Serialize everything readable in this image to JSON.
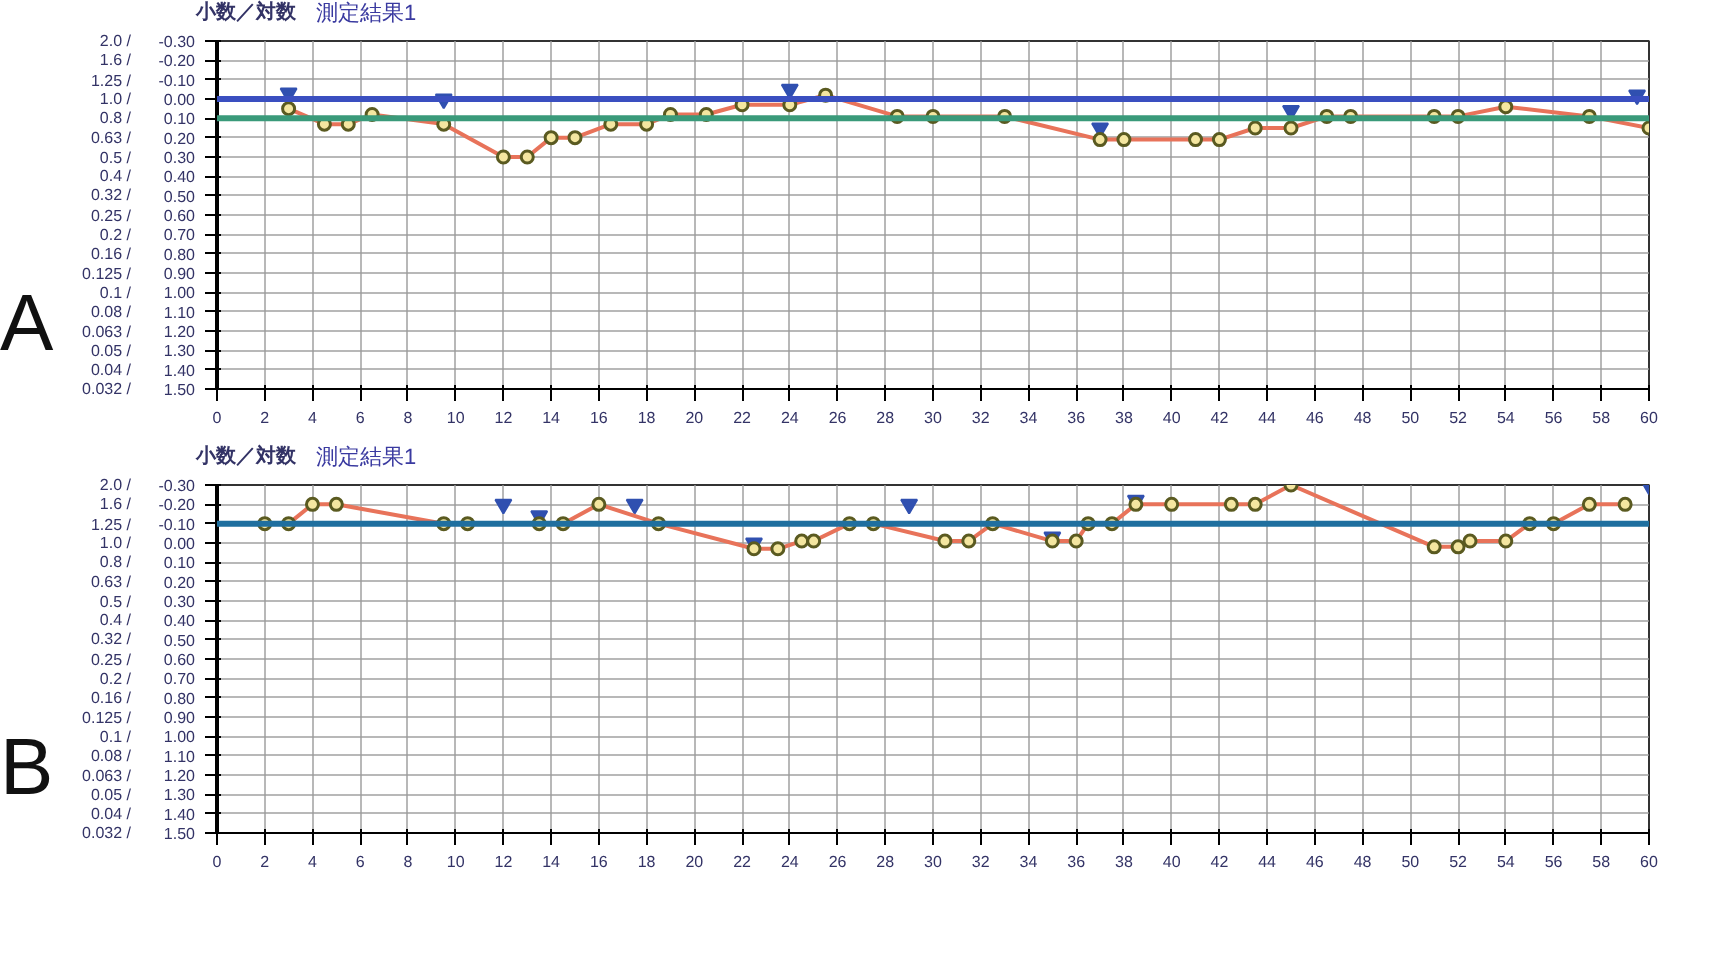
{
  "chart_data": [
    {
      "type": "line",
      "title": "測定結果1",
      "ylabel": "小数／対数",
      "annotations": [
        "A"
      ],
      "xlim": [
        0,
        60
      ],
      "xticks": [
        0,
        2,
        4,
        6,
        8,
        10,
        12,
        14,
        16,
        18,
        20,
        22,
        24,
        26,
        28,
        30,
        32,
        34,
        36,
        38,
        40,
        42,
        44,
        46,
        48,
        50,
        52,
        54,
        56,
        58,
        60
      ],
      "ylim": [
        1.5,
        -0.3
      ],
      "yticks": [
        {
          "value": -0.3,
          "label": "-0.30"
        },
        {
          "value": -0.2,
          "label": "-0.20"
        },
        {
          "value": -0.1,
          "label": "-0.10"
        },
        {
          "value": 0.0,
          "label": "0.00"
        },
        {
          "value": 0.1,
          "label": "0.10"
        },
        {
          "value": 0.2,
          "label": "0.20"
        },
        {
          "value": 0.3,
          "label": "0.30"
        },
        {
          "value": 0.4,
          "label": "0.40"
        },
        {
          "value": 0.5,
          "label": "0.50"
        },
        {
          "value": 0.6,
          "label": "0.60"
        },
        {
          "value": 0.7,
          "label": "0.70"
        },
        {
          "value": 0.8,
          "label": "0.80"
        },
        {
          "value": 0.9,
          "label": "0.90"
        },
        {
          "value": 1.0,
          "label": "1.00"
        },
        {
          "value": 1.1,
          "label": "1.10"
        },
        {
          "value": 1.2,
          "label": "1.20"
        },
        {
          "value": 1.3,
          "label": "1.30"
        },
        {
          "value": 1.4,
          "label": "1.40"
        },
        {
          "value": 1.5,
          "label": "1.50"
        }
      ],
      "log": "y2",
      "y2lim": [
        0.032,
        2.0
      ],
      "y2ticks": [
        {
          "value": 2.0,
          "label": "2.0 /"
        },
        {
          "value": 1.6,
          "label": "1.6 /"
        },
        {
          "value": 1.25,
          "label": "1.25 /"
        },
        {
          "value": 1.0,
          "label": "1.0 /"
        },
        {
          "value": 0.8,
          "label": "0.8 /"
        },
        {
          "value": 0.63,
          "label": "0.63 /"
        },
        {
          "value": 0.5,
          "label": "0.5 /"
        },
        {
          "value": 0.4,
          "label": "0.4 /"
        },
        {
          "value": 0.32,
          "label": "0.32 /"
        },
        {
          "value": 0.25,
          "label": "0.25 /"
        },
        {
          "value": 0.2,
          "label": "0.2 /"
        },
        {
          "value": 0.16,
          "label": "0.16 /"
        },
        {
          "value": 0.125,
          "label": "0.125 /"
        },
        {
          "value": 0.1,
          "label": "0.1 /"
        },
        {
          "value": 0.08,
          "label": "0.08 /"
        },
        {
          "value": 0.063,
          "label": "0.063 /"
        },
        {
          "value": 0.05,
          "label": "0.05 /"
        },
        {
          "value": 0.04,
          "label": "0.04 /"
        },
        {
          "value": 0.032,
          "label": "0.032 /"
        }
      ],
      "grid": true,
      "marker": "circle",
      "ref_lines": [
        {
          "axis": "y",
          "value": 0.0,
          "color": "#3a4fc0"
        },
        {
          "axis": "y",
          "value": 0.1,
          "color": "#3a9a7a"
        }
      ],
      "series": [
        {
          "color": "#e8735a",
          "x": [
            3,
            4.5,
            5.5,
            6.5,
            9.5,
            12,
            13,
            14,
            15,
            16.5,
            18,
            19,
            20.5,
            22,
            24,
            25.5,
            28.5,
            30,
            33,
            37,
            38,
            41,
            42,
            43.5,
            45,
            46.5,
            47.5,
            51,
            52,
            54,
            57.5,
            60
          ],
          "values": [
            0.05,
            0.13,
            0.13,
            0.08,
            0.13,
            0.3,
            0.3,
            0.2,
            0.2,
            0.13,
            0.13,
            0.08,
            0.08,
            0.03,
            0.03,
            -0.02,
            0.09,
            0.09,
            0.09,
            0.21,
            0.21,
            0.21,
            0.21,
            0.15,
            0.15,
            0.09,
            0.09,
            0.09,
            0.09,
            0.04,
            0.09,
            0.15
          ]
        },
        {
          "type": "scatter",
          "marker": "triangle",
          "color": "#3050b0",
          "x": [
            3,
            9.5,
            24,
            37,
            45,
            59.5
          ],
          "values": [
            -0.03,
            0.0,
            -0.05,
            0.15,
            0.06,
            -0.02
          ]
        }
      ]
    },
    {
      "type": "line",
      "title": "測定結果1",
      "ylabel": "小数／対数",
      "annotations": [
        "B"
      ],
      "xlim": [
        0,
        60
      ],
      "xticks": [
        0,
        2,
        4,
        6,
        8,
        10,
        12,
        14,
        16,
        18,
        20,
        22,
        24,
        26,
        28,
        30,
        32,
        34,
        36,
        38,
        40,
        42,
        44,
        46,
        48,
        50,
        52,
        54,
        56,
        58,
        60
      ],
      "ylim": [
        1.5,
        -0.3
      ],
      "yticks": [
        {
          "value": -0.3,
          "label": "-0.30"
        },
        {
          "value": -0.2,
          "label": "-0.20"
        },
        {
          "value": -0.1,
          "label": "-0.10"
        },
        {
          "value": 0.0,
          "label": "0.00"
        },
        {
          "value": 0.1,
          "label": "0.10"
        },
        {
          "value": 0.2,
          "label": "0.20"
        },
        {
          "value": 0.3,
          "label": "0.30"
        },
        {
          "value": 0.4,
          "label": "0.40"
        },
        {
          "value": 0.5,
          "label": "0.50"
        },
        {
          "value": 0.6,
          "label": "0.60"
        },
        {
          "value": 0.7,
          "label": "0.70"
        },
        {
          "value": 0.8,
          "label": "0.80"
        },
        {
          "value": 0.9,
          "label": "0.90"
        },
        {
          "value": 1.0,
          "label": "1.00"
        },
        {
          "value": 1.1,
          "label": "1.10"
        },
        {
          "value": 1.2,
          "label": "1.20"
        },
        {
          "value": 1.3,
          "label": "1.30"
        },
        {
          "value": 1.4,
          "label": "1.40"
        },
        {
          "value": 1.5,
          "label": "1.50"
        }
      ],
      "log": "y2",
      "y2lim": [
        0.032,
        2.0
      ],
      "y2ticks": [
        {
          "value": 2.0,
          "label": "2.0 /"
        },
        {
          "value": 1.6,
          "label": "1.6 /"
        },
        {
          "value": 1.25,
          "label": "1.25 /"
        },
        {
          "value": 1.0,
          "label": "1.0 /"
        },
        {
          "value": 0.8,
          "label": "0.8 /"
        },
        {
          "value": 0.63,
          "label": "0.63 /"
        },
        {
          "value": 0.5,
          "label": "0.5 /"
        },
        {
          "value": 0.4,
          "label": "0.4 /"
        },
        {
          "value": 0.32,
          "label": "0.32 /"
        },
        {
          "value": 0.25,
          "label": "0.25 /"
        },
        {
          "value": 0.2,
          "label": "0.2 /"
        },
        {
          "value": 0.16,
          "label": "0.16 /"
        },
        {
          "value": 0.125,
          "label": "0.125 /"
        },
        {
          "value": 0.1,
          "label": "0.1 /"
        },
        {
          "value": 0.08,
          "label": "0.08 /"
        },
        {
          "value": 0.063,
          "label": "0.063 /"
        },
        {
          "value": 0.05,
          "label": "0.05 /"
        },
        {
          "value": 0.04,
          "label": "0.04 /"
        },
        {
          "value": 0.032,
          "label": "0.032 /"
        }
      ],
      "grid": true,
      "marker": "circle",
      "ref_lines": [
        {
          "axis": "y",
          "value": -0.1,
          "color": "#1f6f9f"
        }
      ],
      "series": [
        {
          "color": "#e8735a",
          "x": [
            2,
            3,
            4,
            5,
            9.5,
            10.5,
            13.5,
            14.5,
            16,
            18.5,
            22.5,
            23.5,
            24.5,
            25,
            26.5,
            27.5,
            30.5,
            31.5,
            32.5,
            35,
            36,
            36.5,
            37.5,
            38.5,
            40,
            42.5,
            43.5,
            45,
            51,
            52,
            52.5,
            54,
            55,
            56,
            57.5,
            59
          ],
          "values": [
            -0.1,
            -0.1,
            -0.2,
            -0.2,
            -0.1,
            -0.1,
            -0.1,
            -0.1,
            -0.2,
            -0.1,
            0.03,
            0.03,
            -0.01,
            -0.01,
            -0.1,
            -0.1,
            -0.01,
            -0.01,
            -0.1,
            -0.01,
            -0.01,
            -0.1,
            -0.1,
            -0.2,
            -0.2,
            -0.2,
            -0.2,
            -0.3,
            0.02,
            0.02,
            -0.01,
            -0.01,
            -0.1,
            -0.1,
            -0.2,
            -0.2
          ]
        },
        {
          "type": "scatter",
          "marker": "triangle",
          "color": "#3050b0",
          "x": [
            12,
            13.5,
            17.5,
            22.5,
            29,
            35,
            38.5,
            60
          ],
          "values": [
            -0.2,
            -0.14,
            -0.2,
            0.0,
            -0.2,
            -0.03,
            -0.22,
            -0.3
          ]
        }
      ]
    }
  ]
}
